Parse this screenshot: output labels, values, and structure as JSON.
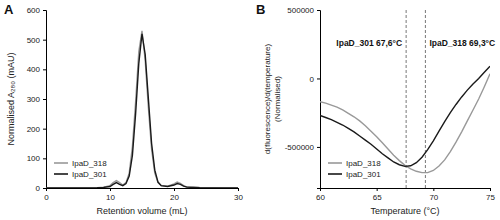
{
  "chart_data": [
    {
      "type": "line",
      "title": "A",
      "xlabel": "Retention volume (mL)",
      "ylabel": [
        "Normalised A₂₈₀ (mAU)"
      ],
      "x": [
        0,
        2,
        4,
        6,
        8,
        9,
        10,
        10.5,
        11,
        11.5,
        12,
        12.5,
        13,
        13.5,
        14,
        14.5,
        15,
        15.5,
        16,
        16.5,
        17,
        17.5,
        18,
        19,
        20,
        20.5,
        21,
        21.5,
        22,
        24,
        26,
        28,
        30
      ],
      "series": [
        {
          "name": "IpaD_318",
          "color": "#999999",
          "values": [
            0,
            0,
            0,
            0,
            1,
            3,
            8,
            18,
            25,
            18,
            10,
            18,
            50,
            140,
            290,
            460,
            530,
            430,
            270,
            130,
            50,
            18,
            8,
            6,
            14,
            20,
            16,
            8,
            4,
            2,
            1,
            0,
            0
          ]
        },
        {
          "name": "IpaD_301",
          "color": "#1a1a1a",
          "values": [
            0,
            0,
            0,
            0,
            1,
            2,
            5,
            12,
            18,
            12,
            8,
            15,
            40,
            110,
            250,
            420,
            520,
            450,
            300,
            150,
            60,
            20,
            8,
            5,
            10,
            15,
            12,
            6,
            3,
            1,
            0,
            0,
            0
          ]
        }
      ],
      "xlim": [
        0,
        30
      ],
      "xticks": [
        0,
        10,
        20,
        30
      ],
      "ylim": [
        0,
        600
      ],
      "yticks": [
        0,
        100,
        200,
        300,
        400,
        500,
        600
      ],
      "legend": "lower left"
    },
    {
      "type": "line",
      "title": "B",
      "xlabel": "Temperature (°C)",
      "ylabel": [
        "d(fluorescence)/d(temperature)",
        "(Normalised)"
      ],
      "x": [
        60,
        60.5,
        61,
        61.5,
        62,
        62.5,
        63,
        63.5,
        64,
        64.5,
        65,
        65.5,
        66,
        66.5,
        67,
        67.5,
        68,
        68.5,
        69,
        69.5,
        70,
        70.5,
        71,
        71.5,
        72,
        72.5,
        73,
        73.5,
        74,
        74.5,
        75
      ],
      "series": [
        {
          "name": "IpaD_318",
          "color": "#999999",
          "values": [
            -170000,
            -180000,
            -195000,
            -210000,
            -230000,
            -255000,
            -280000,
            -310000,
            -345000,
            -385000,
            -425000,
            -470000,
            -515000,
            -560000,
            -600000,
            -635000,
            -660000,
            -678000,
            -688000,
            -688000,
            -672000,
            -640000,
            -595000,
            -535000,
            -465000,
            -390000,
            -310000,
            -230000,
            -150000,
            -60000,
            35000
          ]
        },
        {
          "name": "IpaD_301",
          "color": "#1a1a1a",
          "values": [
            -270000,
            -285000,
            -300000,
            -320000,
            -340000,
            -365000,
            -390000,
            -420000,
            -450000,
            -480000,
            -515000,
            -550000,
            -580000,
            -610000,
            -630000,
            -642000,
            -638000,
            -615000,
            -575000,
            -520000,
            -455000,
            -385000,
            -315000,
            -250000,
            -190000,
            -135000,
            -85000,
            -40000,
            0,
            45000,
            90000
          ]
        }
      ],
      "xlim": [
        60,
        75
      ],
      "xticks": [
        60,
        65,
        70,
        75
      ],
      "ylim": [
        -800000,
        500000
      ],
      "yticks": [
        -500000,
        0,
        500000
      ],
      "annotations": [
        {
          "text": "IpaD_301 67,6°C",
          "x": 67.6
        },
        {
          "text": "IpaD_318 69,3°C",
          "x": 69.3
        }
      ],
      "legend": "lower left"
    }
  ]
}
